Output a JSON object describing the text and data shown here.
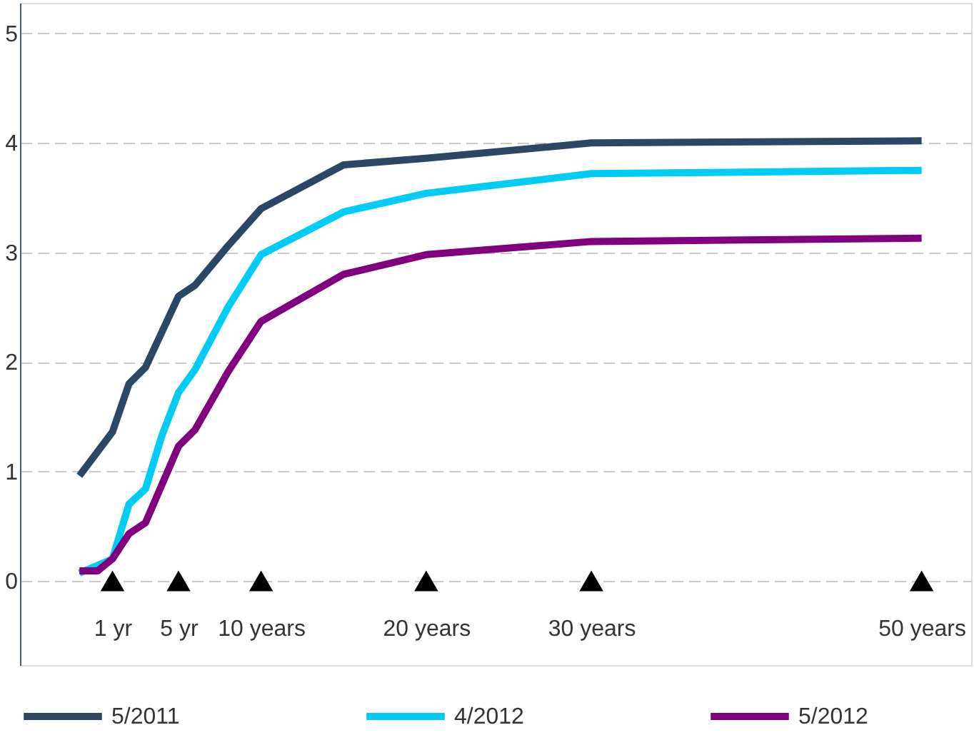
{
  "chart_data": {
    "type": "line",
    "xlim": [
      -4.6,
      53
    ],
    "xticks": [
      {
        "value": 1,
        "label": "1 yr"
      },
      {
        "value": 5,
        "label": "5 yr"
      },
      {
        "value": 10,
        "label": "10 years"
      },
      {
        "value": 20,
        "label": "20 years"
      },
      {
        "value": 30,
        "label": "30 years"
      },
      {
        "value": 50,
        "label": "50 years"
      }
    ],
    "ylim": [
      -0.77,
      5.28
    ],
    "yticks": [
      0,
      1,
      2,
      3,
      4,
      5
    ],
    "grid": "y",
    "legend": "bottom",
    "line_style": "solid",
    "marker": "none",
    "series": [
      {
        "name": "5/2011",
        "color": "#2c4766",
        "x": [
          -1,
          1,
          2,
          3,
          5,
          6,
          8,
          10,
          15,
          20,
          30,
          50
        ],
        "values": [
          0.96,
          1.36,
          1.8,
          1.95,
          2.6,
          2.7,
          3.06,
          3.4,
          3.8,
          3.86,
          4.0,
          4.02
        ]
      },
      {
        "name": "4/2012",
        "color": "#00ccf5",
        "x": [
          -1,
          0.1,
          1,
          2,
          3,
          4,
          5,
          6,
          8,
          10,
          15,
          20,
          30,
          50
        ],
        "values": [
          0.07,
          0.14,
          0.2,
          0.7,
          0.84,
          1.33,
          1.72,
          1.93,
          2.5,
          2.98,
          3.37,
          3.54,
          3.72,
          3.75
        ]
      },
      {
        "name": "5/2012",
        "color": "#800080",
        "x": [
          -1,
          0.1,
          1,
          2,
          3,
          5,
          6,
          8,
          10,
          15,
          20,
          30,
          50
        ],
        "values": [
          0.09,
          0.09,
          0.2,
          0.43,
          0.53,
          1.23,
          1.38,
          1.91,
          2.37,
          2.8,
          2.98,
          3.1,
          3.13
        ]
      },
      {
        "type": "scatter",
        "marker": "triangle",
        "color": "#000000",
        "x": [
          1,
          5,
          10,
          20,
          30,
          50
        ],
        "values": [
          0,
          0,
          0,
          0,
          0,
          0
        ]
      }
    ]
  }
}
